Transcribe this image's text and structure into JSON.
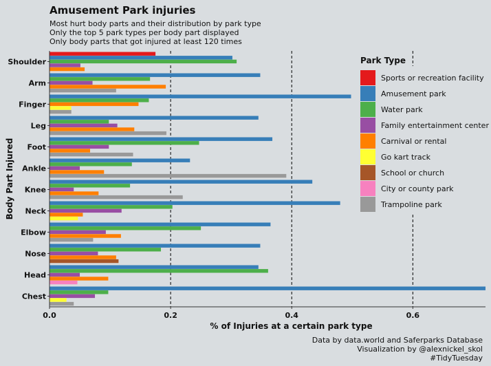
{
  "chart_data": {
    "type": "bar",
    "orientation": "horizontal",
    "title": "Amusement Park injuries",
    "subtitle_lines": [
      "Most hurt body parts and their distribution by park type",
      "Only the top 5 park types per body part displayed",
      "Only body parts that got injured at least 120 times"
    ],
    "caption_lines": [
      "Data by data.world and Saferparks Database",
      "Visualization by @alexnickel_skol",
      "#TidyTuesday"
    ],
    "xlabel": "% of Injuries at a certain park type",
    "ylabel": "Body Part Injured",
    "xlim": [
      0,
      0.72
    ],
    "x_ticks": [
      0.0,
      0.2,
      0.4,
      0.6
    ],
    "x_tick_labels": [
      "0.0",
      "0.2",
      "0.4",
      "0.6"
    ],
    "grid": "dashed vertical lines at 0.2, 0.4, 0.6",
    "legend_title": "Park Type",
    "legend_position": "right",
    "park_types": [
      {
        "name": "Sports or recreation facility",
        "color": "#e41a1c"
      },
      {
        "name": "Amusement park",
        "color": "#377eb8"
      },
      {
        "name": "Water park",
        "color": "#4daf4a"
      },
      {
        "name": "Family entertainment center",
        "color": "#984ea3"
      },
      {
        "name": "Carnival or rental",
        "color": "#ff7f00"
      },
      {
        "name": "Go kart track",
        "color": "#ffff33"
      },
      {
        "name": "School or church",
        "color": "#a65628"
      },
      {
        "name": "City or county park",
        "color": "#f781bf"
      },
      {
        "name": "Trampoline park",
        "color": "#999999"
      }
    ],
    "categories": [
      {
        "label": "Shoulder",
        "bars": [
          {
            "type": "Sports or recreation facility",
            "value": 0.175
          },
          {
            "type": "Amusement park",
            "value": 0.302
          },
          {
            "type": "Water park",
            "value": 0.309
          },
          {
            "type": "Family entertainment center",
            "value": 0.051
          },
          {
            "type": "Carnival or rental",
            "value": 0.058
          }
        ]
      },
      {
        "label": "Arm",
        "bars": [
          {
            "type": "Amusement park",
            "value": 0.348
          },
          {
            "type": "Water park",
            "value": 0.166
          },
          {
            "type": "Family entertainment center",
            "value": 0.071
          },
          {
            "type": "Carnival or rental",
            "value": 0.192
          },
          {
            "type": "Trampoline park",
            "value": 0.11
          }
        ]
      },
      {
        "label": "Finger",
        "bars": [
          {
            "type": "Amusement park",
            "value": 0.498
          },
          {
            "type": "Water park",
            "value": 0.164
          },
          {
            "type": "Carnival or rental",
            "value": 0.147
          },
          {
            "type": "Go kart track",
            "value": 0.036
          },
          {
            "type": "Trampoline park",
            "value": 0.036
          }
        ]
      },
      {
        "label": "Leg",
        "bars": [
          {
            "type": "Amusement park",
            "value": 0.345
          },
          {
            "type": "Water park",
            "value": 0.098
          },
          {
            "type": "Family entertainment center",
            "value": 0.112
          },
          {
            "type": "Carnival or rental",
            "value": 0.14
          },
          {
            "type": "Trampoline park",
            "value": 0.193
          }
        ]
      },
      {
        "label": "Foot",
        "bars": [
          {
            "type": "Amusement park",
            "value": 0.368
          },
          {
            "type": "Water park",
            "value": 0.247
          },
          {
            "type": "Family entertainment center",
            "value": 0.098
          },
          {
            "type": "Carnival or rental",
            "value": 0.067
          },
          {
            "type": "Trampoline park",
            "value": 0.138
          }
        ]
      },
      {
        "label": "Ankle",
        "bars": [
          {
            "type": "Amusement park",
            "value": 0.232
          },
          {
            "type": "Water park",
            "value": 0.136
          },
          {
            "type": "Family entertainment center",
            "value": 0.05
          },
          {
            "type": "Carnival or rental",
            "value": 0.09
          },
          {
            "type": "Trampoline park",
            "value": 0.391
          }
        ]
      },
      {
        "label": "Knee",
        "bars": [
          {
            "type": "Amusement park",
            "value": 0.434
          },
          {
            "type": "Water park",
            "value": 0.133
          },
          {
            "type": "Family entertainment center",
            "value": 0.04
          },
          {
            "type": "Carnival or rental",
            "value": 0.081
          },
          {
            "type": "Trampoline park",
            "value": 0.22
          }
        ]
      },
      {
        "label": "Neck",
        "bars": [
          {
            "type": "Amusement park",
            "value": 0.48
          },
          {
            "type": "Water park",
            "value": 0.203
          },
          {
            "type": "Family entertainment center",
            "value": 0.119
          },
          {
            "type": "Carnival or rental",
            "value": 0.055
          },
          {
            "type": "Go kart track",
            "value": 0.047
          }
        ]
      },
      {
        "label": "Elbow",
        "bars": [
          {
            "type": "Amusement park",
            "value": 0.365
          },
          {
            "type": "Water park",
            "value": 0.25
          },
          {
            "type": "Family entertainment center",
            "value": 0.093
          },
          {
            "type": "Carnival or rental",
            "value": 0.118
          },
          {
            "type": "Trampoline park",
            "value": 0.072
          }
        ]
      },
      {
        "label": "Nose",
        "bars": [
          {
            "type": "Amusement park",
            "value": 0.348
          },
          {
            "type": "Water park",
            "value": 0.184
          },
          {
            "type": "Family entertainment center",
            "value": 0.08
          },
          {
            "type": "Carnival or rental",
            "value": 0.11
          },
          {
            "type": "School or church",
            "value": 0.114
          }
        ]
      },
      {
        "label": "Head",
        "bars": [
          {
            "type": "Amusement park",
            "value": 0.345
          },
          {
            "type": "Water park",
            "value": 0.361
          },
          {
            "type": "Family entertainment center",
            "value": 0.05
          },
          {
            "type": "Carnival or rental",
            "value": 0.097
          },
          {
            "type": "City or county park",
            "value": 0.046
          }
        ]
      },
      {
        "label": "Chest",
        "bars": [
          {
            "type": "Amusement park",
            "value": 0.72
          },
          {
            "type": "Water park",
            "value": 0.097
          },
          {
            "type": "Family entertainment center",
            "value": 0.075
          },
          {
            "type": "Go kart track",
            "value": 0.028
          },
          {
            "type": "Trampoline park",
            "value": 0.04
          }
        ]
      }
    ]
  }
}
